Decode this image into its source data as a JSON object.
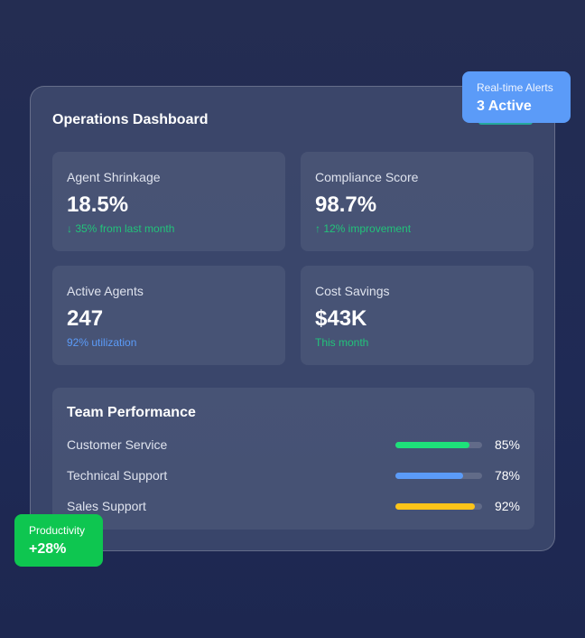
{
  "dashboard": {
    "title": "Operations Dashboard"
  },
  "metrics": [
    {
      "label": "Agent Shrinkage",
      "value": "18.5%",
      "sub": "↓ 35% from last month",
      "sub_color": "#22c37a"
    },
    {
      "label": "Compliance Score",
      "value": "98.7%",
      "sub": "↑ 12% improvement",
      "sub_color": "#22c37a"
    },
    {
      "label": "Active Agents",
      "value": "247",
      "sub": "92% utilization",
      "sub_color": "#5b9bf8"
    },
    {
      "label": "Cost Savings",
      "value": "$43K",
      "sub": "This month",
      "sub_color": "#22c37a"
    }
  ],
  "team": {
    "title": "Team Performance",
    "rows": [
      {
        "name": "Customer Service",
        "pct_label": "85%",
        "pct": 85,
        "color": "#1ee07a"
      },
      {
        "name": "Technical Support",
        "pct_label": "78%",
        "pct": 78,
        "color": "#5b9bf8"
      },
      {
        "name": "Sales Support",
        "pct_label": "92%",
        "pct": 92,
        "color": "#fcc419"
      }
    ]
  },
  "alert": {
    "label": "Real-time Alerts",
    "value": "3 Active",
    "color": "#5b9bf8"
  },
  "productivity": {
    "label": "Productivity",
    "value": "+28%",
    "color": "#0ec650"
  }
}
